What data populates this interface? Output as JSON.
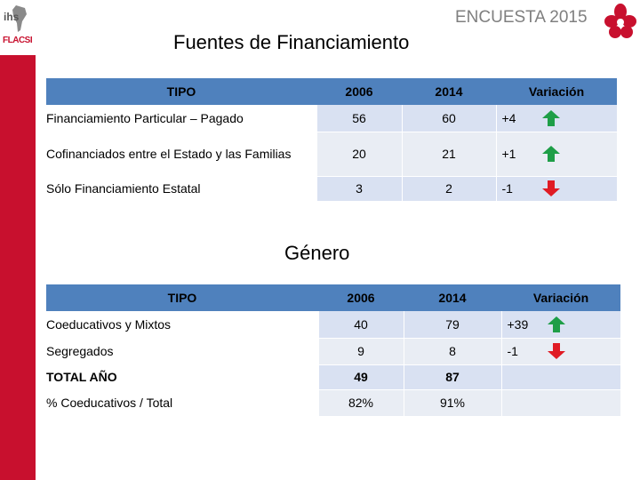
{
  "brand": {
    "logo_top": "ihs",
    "logo_bottom": "FLACSI"
  },
  "header": {
    "survey": "ENCUESTA 2015"
  },
  "financing": {
    "title": "Fuentes de Financiamiento",
    "columns": [
      "TIPO",
      "2006",
      "2014",
      "Variación"
    ],
    "rows": [
      {
        "type": "Financiamiento Particular – Pagado",
        "y2006": "56",
        "y2014": "60",
        "variation": "+4",
        "trend": "up"
      },
      {
        "type": "Cofinanciados entre el Estado y las Familias",
        "y2006": "20",
        "y2014": "21",
        "variation": "+1",
        "trend": "up"
      },
      {
        "type": "Sólo Financiamiento Estatal",
        "y2006": "3",
        "y2014": "2",
        "variation": "-1",
        "trend": "down"
      }
    ]
  },
  "gender": {
    "title": "Género",
    "columns": [
      "TIPO",
      "2006",
      "2014",
      "Variación"
    ],
    "rows": [
      {
        "type": "Coeducativos y Mixtos",
        "y2006": "40",
        "y2014": "79",
        "variation": "+39",
        "trend": "up"
      },
      {
        "type": "Segregados",
        "y2006": "9",
        "y2014": "8",
        "variation": "-1",
        "trend": "down"
      },
      {
        "type": "TOTAL AÑO",
        "y2006": "49",
        "y2014": "87",
        "variation": "",
        "trend": ""
      },
      {
        "type": "% Coeducativos / Total",
        "y2006": "82%",
        "y2014": "91%",
        "variation": "",
        "trend": ""
      }
    ]
  },
  "colors": {
    "header_blue": "#4f81bd",
    "row_tint": "#d9e1f2",
    "sidebar_red": "#c8102e",
    "up_green": "#1e9e47",
    "down_red": "#e01b24"
  },
  "icons": {
    "up": "up-arrow-icon",
    "down": "down-arrow-icon"
  }
}
